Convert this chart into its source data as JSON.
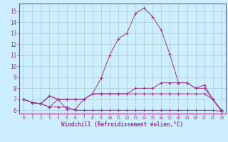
{
  "xlabel": "Windchill (Refroidissement éolien,°C)",
  "background_color": "#cceeff",
  "grid_color": "#aacccc",
  "line_color": "#993399",
  "x": [
    0,
    1,
    2,
    3,
    4,
    5,
    6,
    7,
    8,
    9,
    10,
    11,
    12,
    13,
    14,
    15,
    16,
    17,
    18,
    19,
    20,
    21,
    22,
    23
  ],
  "ylim": [
    5.7,
    15.7
  ],
  "xlim": [
    -0.5,
    23.5
  ],
  "yticks": [
    6,
    7,
    8,
    9,
    10,
    11,
    12,
    13,
    14,
    15
  ],
  "xticks": [
    0,
    1,
    2,
    3,
    4,
    5,
    6,
    7,
    8,
    9,
    10,
    11,
    12,
    13,
    14,
    15,
    16,
    17,
    18,
    19,
    20,
    21,
    22,
    23
  ],
  "series": [
    [
      7.0,
      6.7,
      6.6,
      7.3,
      7.0,
      6.1,
      6.1,
      7.0,
      7.5,
      8.9,
      11.0,
      12.5,
      13.0,
      14.8,
      15.3,
      14.5,
      13.3,
      11.1,
      8.5,
      8.5,
      8.0,
      8.3,
      7.0,
      5.9
    ],
    [
      7.0,
      6.7,
      6.6,
      7.3,
      7.0,
      7.0,
      7.0,
      7.0,
      7.5,
      7.5,
      7.5,
      7.5,
      7.5,
      8.0,
      8.0,
      8.0,
      8.5,
      8.5,
      8.5,
      8.5,
      8.0,
      8.0,
      7.0,
      6.0
    ],
    [
      7.0,
      6.7,
      6.6,
      6.3,
      7.0,
      7.0,
      7.0,
      7.0,
      7.5,
      7.5,
      7.5,
      7.5,
      7.5,
      7.5,
      7.5,
      7.5,
      7.5,
      7.5,
      7.5,
      7.5,
      7.5,
      7.5,
      7.0,
      6.0
    ],
    [
      7.0,
      6.7,
      6.6,
      6.3,
      6.3,
      6.3,
      6.0,
      6.0,
      6.0,
      6.0,
      6.0,
      6.0,
      6.0,
      6.0,
      6.0,
      6.0,
      6.0,
      6.0,
      6.0,
      6.0,
      6.0,
      6.0,
      6.0,
      5.9
    ]
  ]
}
